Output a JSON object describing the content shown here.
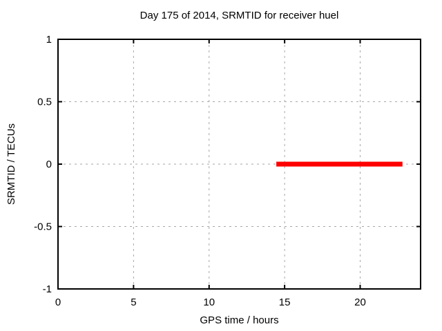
{
  "chart_data": {
    "type": "line",
    "title": "Day 175 of 2014, SRMTID for receiver huel",
    "xlabel": "GPS time / hours",
    "ylabel": "SRMTID / TECUs",
    "xlim": [
      0,
      24
    ],
    "ylim": [
      -1,
      1
    ],
    "xticks": [
      0,
      5,
      10,
      15,
      20
    ],
    "yticks": [
      -1,
      -0.5,
      0,
      0.5,
      1
    ],
    "grid": true,
    "legend": "none",
    "background_color": "#ffffff",
    "grid_color": "#a6a6a6",
    "axis_color": "#000000",
    "series": [
      {
        "name": "SRMTID",
        "color": "#ff0000",
        "line_width": 7,
        "points": [
          [
            14.45,
            0
          ],
          [
            22.8,
            0
          ]
        ]
      }
    ]
  }
}
